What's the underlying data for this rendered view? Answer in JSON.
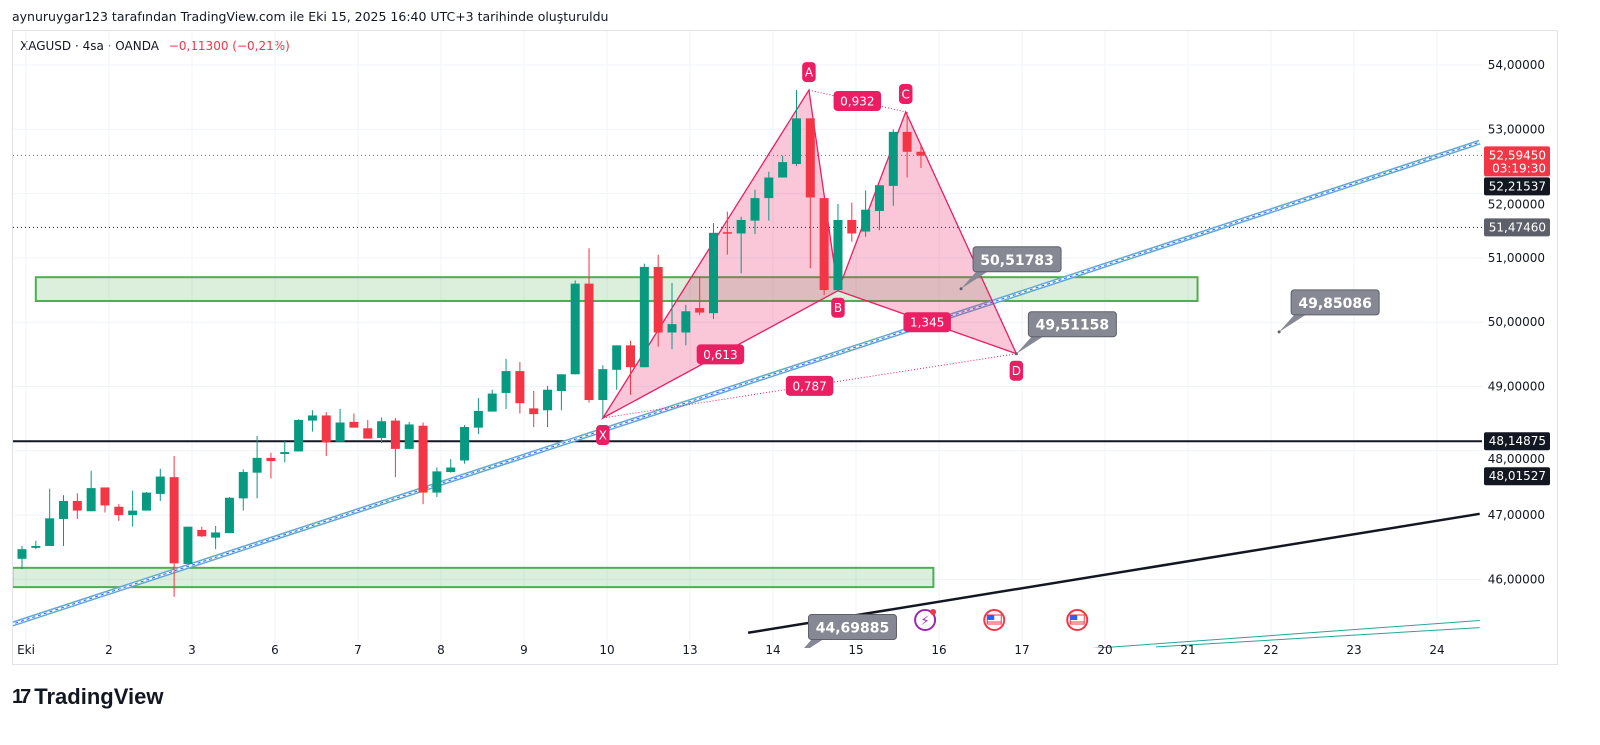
{
  "caption": "aynuruygar123 tarafından TradingView.com ile Eki 15, 2025 16:40 UTC+3 tarihinde oluşturuldu",
  "legend": {
    "symbol": "XAGUSD · 4sa · OANDA",
    "change": "−0,11300 (−0,21%)"
  },
  "logo": {
    "mark": "17",
    "text": "TradingView"
  },
  "colors": {
    "up": "#089981",
    "down": "#f23645",
    "pattern": "#e91e63",
    "zone": "#4caf50",
    "channel": "#5fa8d3"
  },
  "chart_data": {
    "type": "candlestick",
    "title": "XAGUSD · 4sa · OANDA",
    "ylim": [
      44.9,
      54.6
    ],
    "y_ticks": [
      "54,00000",
      "53,00000",
      "52,00000",
      "51,00000",
      "50,00000",
      "49,00000",
      "48,00000",
      "47,00000",
      "46,00000"
    ],
    "y_tick_values": [
      54,
      53,
      52,
      51,
      50,
      49,
      48,
      47,
      46
    ],
    "x_labels": [
      "Eki",
      "2",
      "3",
      "6",
      "7",
      "8",
      "9",
      "10",
      "13",
      "14",
      "15",
      "16",
      "17",
      "20",
      "21",
      "22",
      "23",
      "24"
    ],
    "bars_per_day": 6,
    "candles": [
      [
        46.32,
        46.52,
        46.16,
        46.47
      ],
      [
        46.49,
        46.6,
        46.47,
        46.52
      ],
      [
        46.52,
        47.41,
        46.52,
        46.95
      ],
      [
        46.94,
        47.31,
        46.52,
        47.22
      ],
      [
        47.22,
        47.34,
        46.94,
        47.07
      ],
      [
        47.06,
        47.69,
        47.06,
        47.42
      ],
      [
        47.43,
        47.43,
        47.04,
        47.15
      ],
      [
        47.13,
        47.17,
        46.91,
        47.0
      ],
      [
        47.0,
        47.38,
        46.82,
        47.07
      ],
      [
        47.07,
        47.36,
        47.07,
        47.35
      ],
      [
        47.33,
        47.72,
        47.22,
        47.6
      ],
      [
        47.59,
        47.92,
        45.73,
        46.25
      ],
      [
        46.24,
        46.82,
        46.23,
        46.82
      ],
      [
        46.77,
        46.82,
        46.66,
        46.67
      ],
      [
        46.65,
        46.83,
        46.47,
        46.73
      ],
      [
        46.72,
        47.28,
        46.72,
        47.27
      ],
      [
        47.26,
        47.71,
        47.07,
        47.67
      ],
      [
        47.66,
        48.23,
        47.26,
        47.89
      ],
      [
        47.89,
        47.97,
        47.57,
        47.84
      ],
      [
        47.95,
        48.15,
        47.82,
        47.98
      ],
      [
        47.99,
        48.49,
        47.99,
        48.48
      ],
      [
        48.47,
        48.63,
        48.3,
        48.55
      ],
      [
        48.55,
        48.6,
        47.92,
        48.13
      ],
      [
        48.14,
        48.65,
        48.14,
        48.44
      ],
      [
        48.45,
        48.58,
        48.36,
        48.36
      ],
      [
        48.35,
        48.48,
        48.19,
        48.19
      ],
      [
        48.2,
        48.52,
        48.12,
        48.46
      ],
      [
        48.47,
        48.51,
        47.59,
        48.03
      ],
      [
        48.03,
        48.45,
        48.03,
        48.41
      ],
      [
        48.39,
        48.44,
        47.17,
        47.35
      ],
      [
        47.35,
        47.74,
        47.28,
        47.68
      ],
      [
        47.67,
        47.87,
        47.66,
        47.74
      ],
      [
        47.85,
        48.4,
        47.8,
        48.37
      ],
      [
        48.36,
        48.82,
        48.26,
        48.62
      ],
      [
        48.61,
        48.95,
        48.61,
        48.89
      ],
      [
        48.9,
        49.43,
        48.65,
        49.24
      ],
      [
        49.24,
        49.38,
        48.58,
        48.74
      ],
      [
        48.66,
        48.93,
        48.37,
        48.57
      ],
      [
        48.63,
        49.01,
        48.37,
        48.95
      ],
      [
        48.93,
        49.19,
        48.63,
        49.19
      ],
      [
        49.19,
        50.65,
        49.19,
        50.6
      ],
      [
        50.6,
        51.15,
        48.75,
        48.79
      ],
      [
        48.79,
        49.33,
        48.51,
        49.27
      ],
      [
        49.26,
        49.64,
        48.95,
        49.64
      ],
      [
        49.64,
        49.71,
        48.87,
        49.3
      ],
      [
        49.3,
        50.91,
        49.3,
        50.86
      ],
      [
        50.86,
        51.05,
        49.62,
        49.84
      ],
      [
        49.84,
        50.61,
        49.58,
        49.97
      ],
      [
        49.84,
        50.27,
        49.64,
        50.17
      ],
      [
        50.22,
        50.71,
        50.11,
        50.15
      ],
      [
        50.14,
        51.54,
        50.05,
        51.39
      ],
      [
        51.4,
        51.72,
        51.05,
        51.38
      ],
      [
        51.38,
        51.64,
        50.76,
        51.59
      ],
      [
        51.58,
        52.06,
        51.37,
        51.93
      ],
      [
        51.93,
        52.34,
        51.58,
        52.25
      ],
      [
        52.25,
        52.59,
        52.25,
        52.49
      ],
      [
        52.46,
        53.61,
        52.43,
        53.17
      ],
      [
        53.17,
        53.17,
        50.84,
        51.94
      ],
      [
        51.93,
        51.93,
        50.42,
        50.5
      ],
      [
        50.5,
        51.84,
        50.49,
        51.59
      ],
      [
        51.59,
        51.86,
        51.25,
        51.38
      ],
      [
        51.41,
        52.05,
        51.33,
        51.75
      ],
      [
        51.73,
        52.13,
        51.43,
        52.13
      ],
      [
        52.12,
        53.0,
        51.81,
        52.96
      ],
      [
        52.96,
        53.27,
        52.25,
        52.65
      ],
      [
        52.65,
        52.74,
        52.4,
        52.59
      ]
    ],
    "horizontal_lines": [
      {
        "price": 48.14875,
        "label": "48,14875",
        "style": "solid"
      },
      {
        "price": 52.5945,
        "style": "dotted-red"
      },
      {
        "price": 51.4746,
        "style": "dotted"
      }
    ],
    "zones": [
      {
        "from_bar": 1,
        "to_bar": 85,
        "top": 50.7,
        "bottom": 50.33
      },
      {
        "from_bar": -0.7,
        "to_bar": 65.9,
        "top": 46.18,
        "bottom": 45.88
      }
    ],
    "trendlines": [
      {
        "name": "channel",
        "from": [
          -0.9,
          45.29
        ],
        "to": [
          105.4,
          52.8
        ]
      },
      {
        "name": "support",
        "from": [
          52.5,
          45.17
        ],
        "to": [
          105.4,
          47.02
        ]
      },
      {
        "name": "teal-a",
        "from": [
          77,
          44.92
        ],
        "to": [
          105.4,
          45.36
        ]
      },
      {
        "name": "teal-b",
        "from": [
          82,
          44.95
        ],
        "to": [
          105.4,
          45.25
        ]
      }
    ],
    "xabcd": {
      "points": [
        {
          "label": "X",
          "bar": 42,
          "price": 48.51
        },
        {
          "label": "A",
          "bar": 56.9,
          "price": 53.61
        },
        {
          "label": "B",
          "bar": 59,
          "price": 50.49
        },
        {
          "label": "C",
          "bar": 63.9,
          "price": 53.27
        },
        {
          "label": "D",
          "bar": 71.9,
          "price": 49.51
        }
      ],
      "ratios": {
        "XB": "0,613",
        "AC": "0,932",
        "BD": "1,345",
        "XD": "0,787"
      }
    },
    "callouts": [
      {
        "label": "50,51783",
        "bar": 67.9,
        "price": 50.52
      },
      {
        "label": "49,51158",
        "bar": 71.9,
        "price": 49.51
      },
      {
        "label": "49,85086",
        "bar": 90.9,
        "price": 49.85
      },
      {
        "label": "44,69885",
        "bar": 56.0,
        "price": 44.8
      }
    ],
    "price_tags": [
      {
        "label": "52,59450",
        "sub": "03:19:30",
        "price": 52.5945,
        "color": "#f23645"
      },
      {
        "label": "52,21537",
        "price": 52.215,
        "color": "#131722"
      },
      {
        "label": "51,47460",
        "price": 51.4746,
        "color": "#5d606b"
      },
      {
        "label": "48,14875",
        "price": 48.14875,
        "color": "#131722"
      },
      {
        "label": "48,01527",
        "price": 47.93,
        "color": "#131722"
      }
    ],
    "events": [
      {
        "icon": "lightning-event-icon",
        "bar": 65.3
      },
      {
        "icon": "us-flag-event-icon",
        "bar": 70.3
      },
      {
        "icon": "us-flag-event-icon",
        "bar": 76.3
      }
    ]
  }
}
